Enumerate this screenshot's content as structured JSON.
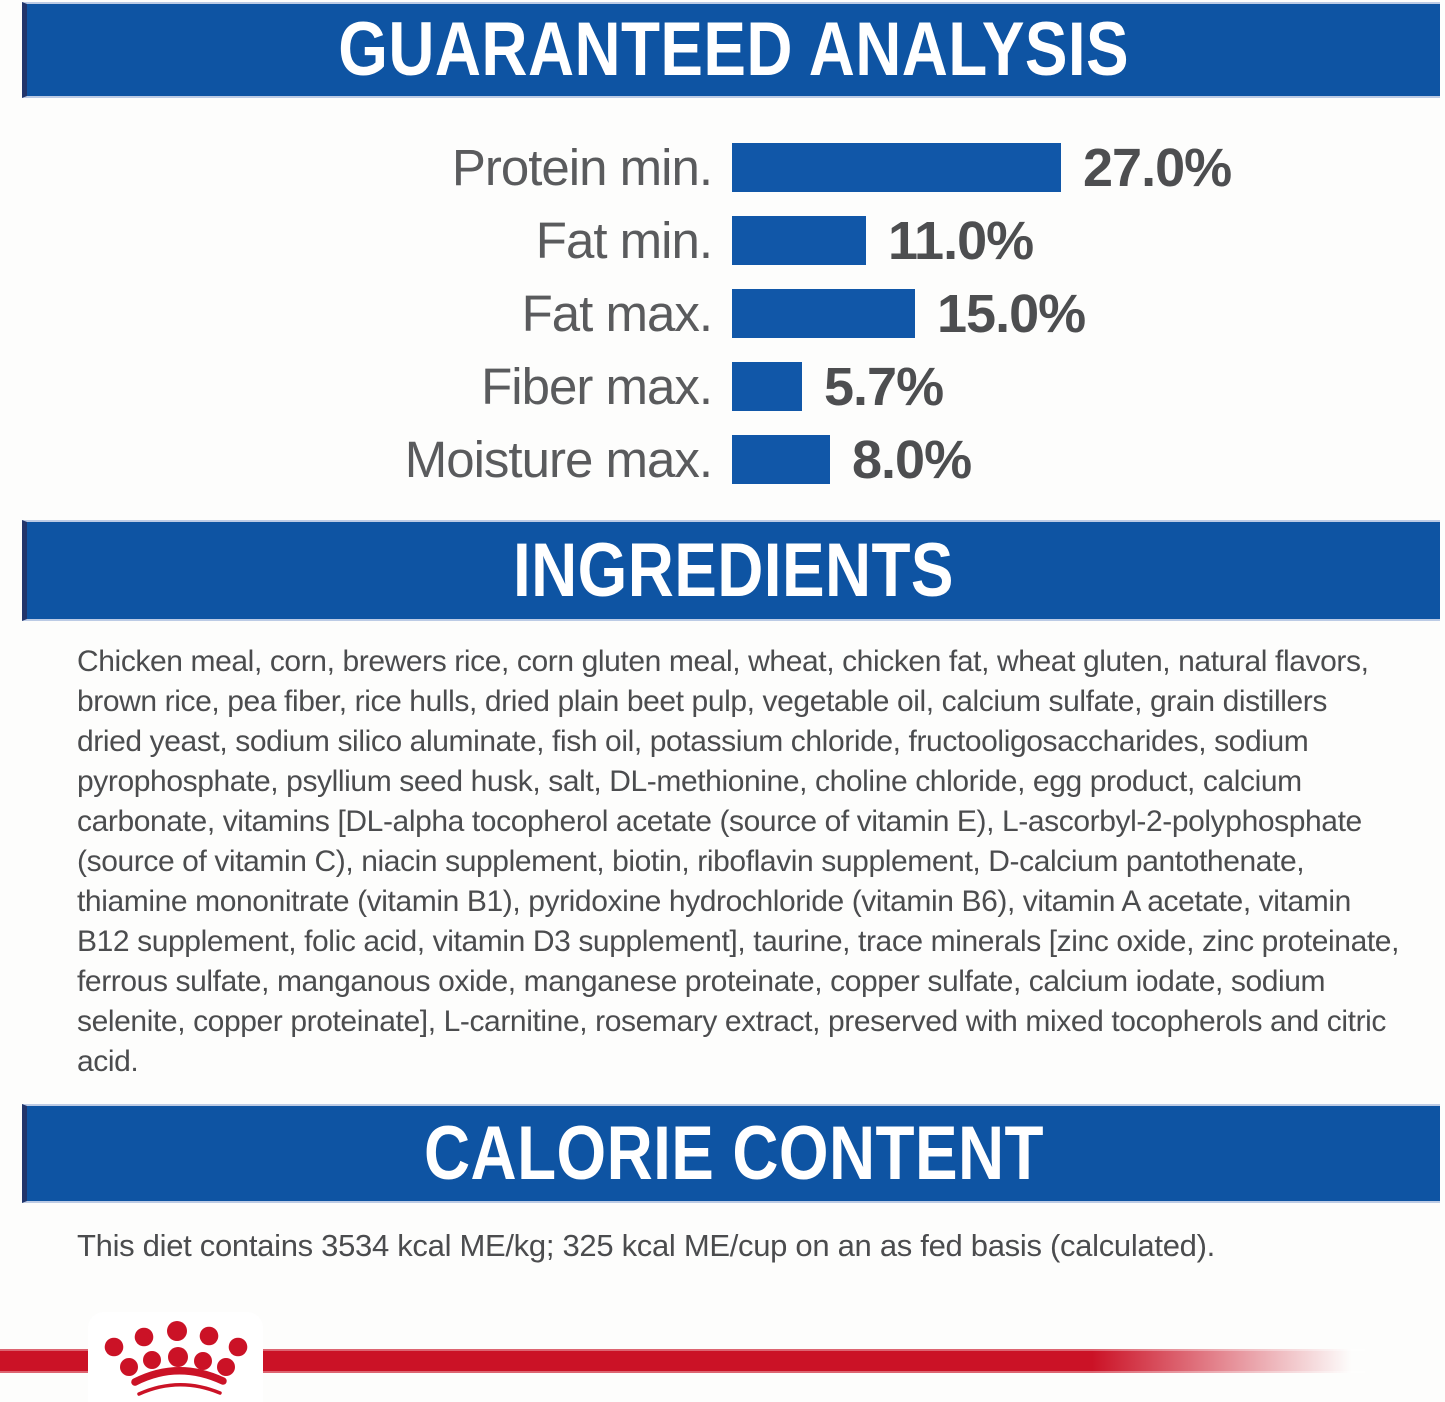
{
  "colors": {
    "banner_blue": "#0e54a3",
    "banner_edge_dark": "#22356b",
    "banner_edge_light": "#bccbe5",
    "bar_blue": "#1157a8",
    "label_gray": "#5a5b5d",
    "value_gray": "#4d4e50",
    "body_text_gray": "#4b4c4e",
    "brand_red": "#cb1226",
    "banner_text_white": "#ffffff"
  },
  "sections": {
    "guaranteed_analysis": {
      "title": "GUARANTEED ANALYSIS"
    },
    "ingredients": {
      "title": "INGREDIENTS",
      "text": "Chicken meal, corn, brewers rice, corn gluten meal, wheat, chicken fat, wheat gluten, natural flavors, brown rice, pea fiber, rice hulls, dried plain beet pulp, vegetable oil, calcium sulfate, grain distillers dried yeast, sodium silico aluminate, fish oil, potassium chloride, fructooligosaccharides, sodium pyrophosphate, psyllium seed husk, salt, DL-methionine, choline chloride, egg product, calcium carbonate, vitamins [DL-alpha tocopherol acetate (source of vitamin E), L-ascorbyl-2-polyphosphate (source of vitamin C), niacin supplement, biotin, riboflavin supplement, D-calcium pantothenate, thiamine mononitrate (vitamin B1), pyridoxine hydrochloride (vitamin B6), vitamin A acetate, vitamin B12 supplement, folic acid, vitamin D3 supplement], taurine, trace minerals [zinc oxide, zinc proteinate, ferrous sulfate, manganous oxide, manganese proteinate, copper sulfate, calcium iodate, sodium selenite, copper proteinate], L-carnitine, rosemary extract, preserved with mixed tocopherols and citric acid."
    },
    "calorie_content": {
      "title": "CALORIE CONTENT",
      "text": "This diet contains 3534 kcal ME/kg; 325 kcal ME/cup on an as fed basis (calculated)."
    }
  },
  "chart_data": {
    "type": "bar",
    "orientation": "horizontal",
    "title": "GUARANTEED ANALYSIS",
    "categories": [
      "Protein min.",
      "Fat min.",
      "Fat max.",
      "Fiber max.",
      "Moisture max."
    ],
    "values": [
      27.0,
      11.0,
      15.0,
      5.7,
      8.0
    ],
    "value_labels": [
      "27.0%",
      "11.0%",
      "15.0%",
      "5.7%",
      "8.0%"
    ],
    "unit": "%",
    "xlim": [
      0,
      30
    ],
    "grid": false,
    "bar_color": "#1157a8",
    "value_label_position": "right-of-bar"
  },
  "footer": {
    "logo_name": "royal-canin-crown-logo"
  }
}
